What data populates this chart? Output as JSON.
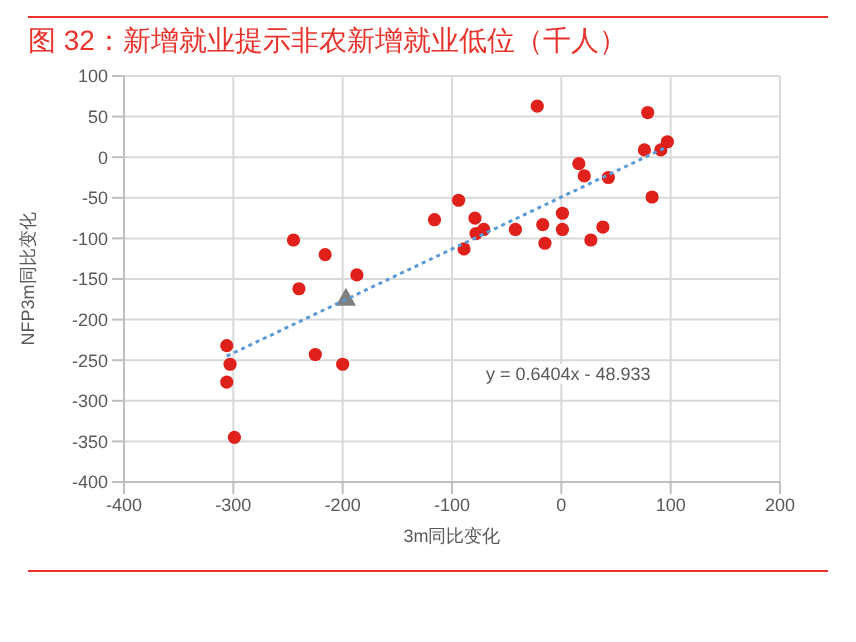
{
  "chart_data": {
    "type": "scatter",
    "title": "图 32：新增就业提示非农新增就业低位（千人）",
    "xlabel": "3m同比变化",
    "ylabel": "NFP3m同比变化",
    "xlim": [
      -400,
      200
    ],
    "xticks": [
      -400,
      -300,
      -200,
      -100,
      0,
      100,
      200
    ],
    "ylim": [
      -400,
      100
    ],
    "yticks": [
      -400,
      -350,
      -300,
      -250,
      -200,
      -150,
      -100,
      -50,
      0,
      50,
      100
    ],
    "grid": true,
    "annotations": [
      "y = 0.6404x - 48.933"
    ],
    "series": [
      {
        "marker": "circle",
        "color": "#e0201b",
        "x": [
          -245,
          -216,
          -187,
          -240,
          -306,
          -303,
          -225,
          -200,
          -306,
          -299,
          -116,
          -94,
          -22,
          -79,
          -78,
          -71,
          -89,
          -42,
          -17,
          -15,
          1,
          1,
          16,
          21,
          43,
          27,
          38,
          79,
          76,
          91,
          97,
          83
        ],
        "values": [
          -102,
          -120,
          -145,
          -162,
          -232,
          -255,
          -243,
          -255,
          -277,
          -345,
          -77,
          -53,
          63,
          -75,
          -94,
          -89,
          -113,
          -89,
          -83,
          -106,
          -69,
          -89,
          -8,
          -23,
          -25,
          -102,
          -86,
          55,
          9,
          9,
          19,
          -49
        ]
      },
      {
        "marker": "triangle",
        "color": "#7f7f7f",
        "x": [
          -197
        ],
        "values": [
          -173
        ]
      },
      {
        "type": "line",
        "marker": "none",
        "line_style": "dotted",
        "color": "#5b9bd5",
        "x": [
          -306,
          97
        ],
        "values": [
          -245,
          13
        ]
      }
    ]
  }
}
